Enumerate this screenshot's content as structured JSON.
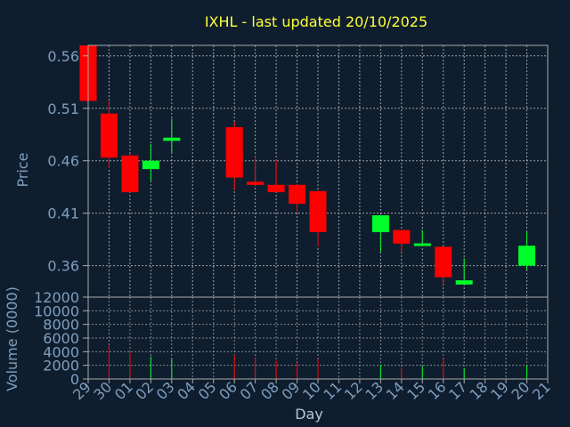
{
  "title": "IXHL - last updated 20/10/2025",
  "colors": {
    "background": "#0f1e2e",
    "up": "#00ff2a",
    "down": "#ff0000",
    "text": "#7f9fbf",
    "title": "#ffff3a",
    "grid": "#cccccc",
    "axis": "#aaaaaa"
  },
  "chart_data": [
    {
      "type": "candlestick",
      "ylabel": "Price",
      "ylim": [
        0.33,
        0.57
      ],
      "yticks": [
        "0.56",
        "0.51",
        "0.46",
        "0.41",
        "0.36"
      ],
      "ytick_values": [
        0.56,
        0.51,
        0.46,
        0.41,
        0.36
      ],
      "x_categories": [
        "29",
        "30",
        "01",
        "02",
        "03",
        "04",
        "05",
        "06",
        "07",
        "08",
        "09",
        "10",
        "11",
        "12",
        "13",
        "14",
        "15",
        "16",
        "17",
        "18",
        "19",
        "20",
        "21"
      ],
      "grid": true,
      "candles": [
        {
          "day": "29",
          "open": 0.57,
          "high": 0.57,
          "low": 0.517,
          "close": 0.517
        },
        {
          "day": "30",
          "open": 0.505,
          "high": 0.517,
          "low": 0.453,
          "close": 0.463
        },
        {
          "day": "01",
          "open": 0.465,
          "high": 0.467,
          "low": 0.43,
          "close": 0.43
        },
        {
          "day": "02",
          "open": 0.452,
          "high": 0.476,
          "low": 0.441,
          "close": 0.46
        },
        {
          "day": "03",
          "open": 0.479,
          "high": 0.5,
          "low": 0.468,
          "close": 0.482
        },
        {
          "day": "06",
          "open": 0.492,
          "high": 0.497,
          "low": 0.432,
          "close": 0.444
        },
        {
          "day": "07",
          "open": 0.44,
          "high": 0.464,
          "low": 0.436,
          "close": 0.437
        },
        {
          "day": "08",
          "open": 0.437,
          "high": 0.461,
          "low": 0.43,
          "close": 0.43
        },
        {
          "day": "09",
          "open": 0.437,
          "high": 0.438,
          "low": 0.411,
          "close": 0.419
        },
        {
          "day": "10",
          "open": 0.431,
          "high": 0.432,
          "low": 0.378,
          "close": 0.392
        },
        {
          "day": "13",
          "open": 0.392,
          "high": 0.408,
          "low": 0.373,
          "close": 0.408
        },
        {
          "day": "14",
          "open": 0.394,
          "high": 0.394,
          "low": 0.373,
          "close": 0.381
        },
        {
          "day": "15",
          "open": 0.379,
          "high": 0.394,
          "low": 0.379,
          "close": 0.381
        },
        {
          "day": "16",
          "open": 0.378,
          "high": 0.378,
          "low": 0.343,
          "close": 0.349
        },
        {
          "day": "17",
          "open": 0.342,
          "high": 0.367,
          "low": 0.342,
          "close": 0.346
        },
        {
          "day": "20",
          "open": 0.36,
          "high": 0.392,
          "low": 0.356,
          "close": 0.379
        }
      ]
    },
    {
      "type": "bar",
      "ylabel": "Volume (0000)",
      "xlabel": "Day",
      "ylim": [
        0,
        12000
      ],
      "yticks": [
        "12000",
        "10000",
        "8000",
        "6000",
        "4000",
        "2000",
        "0"
      ],
      "ytick_values": [
        12000,
        10000,
        8000,
        6000,
        4000,
        2000,
        0
      ],
      "x_tick_labels": [
        "29",
        "30",
        "01",
        "02",
        "03",
        "04",
        "05",
        "06",
        "07",
        "08",
        "09",
        "10",
        "11",
        "12",
        "13",
        "14",
        "15",
        "16",
        "17",
        "18",
        "19",
        "20",
        "21"
      ],
      "bars": [
        {
          "day": "29",
          "value": 0,
          "dir": "down"
        },
        {
          "day": "30",
          "value": 4900,
          "dir": "down"
        },
        {
          "day": "01",
          "value": 4000,
          "dir": "down"
        },
        {
          "day": "02",
          "value": 3300,
          "dir": "up"
        },
        {
          "day": "03",
          "value": 2900,
          "dir": "up"
        },
        {
          "day": "06",
          "value": 3500,
          "dir": "down"
        },
        {
          "day": "07",
          "value": 3200,
          "dir": "down"
        },
        {
          "day": "08",
          "value": 2700,
          "dir": "down"
        },
        {
          "day": "09",
          "value": 2400,
          "dir": "down"
        },
        {
          "day": "10",
          "value": 2900,
          "dir": "down"
        },
        {
          "day": "13",
          "value": 2100,
          "dir": "up"
        },
        {
          "day": "14",
          "value": 1700,
          "dir": "down"
        },
        {
          "day": "15",
          "value": 1900,
          "dir": "up"
        },
        {
          "day": "16",
          "value": 3000,
          "dir": "down"
        },
        {
          "day": "17",
          "value": 1600,
          "dir": "up"
        },
        {
          "day": "20",
          "value": 2000,
          "dir": "up"
        }
      ]
    }
  ]
}
